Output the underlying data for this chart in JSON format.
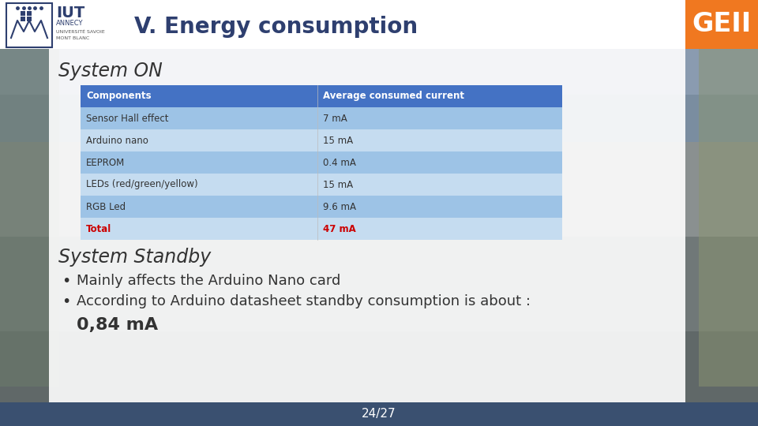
{
  "title": "V. Energy consumption",
  "geii_label": "GEII",
  "geii_bg": "#F07820",
  "geii_color": "#FFFFFF",
  "slide_bg": "#8A9BB0",
  "bottom_bar_color": "#3A5070",
  "bottom_text": "24/27",
  "system_on_title": "System ON",
  "system_standby_title": "System Standby",
  "table_header_bg": "#4472C4",
  "table_header_color": "#FFFFFF",
  "table_row_bg_odd": "#9DC3E6",
  "table_row_bg_even": "#C5DCF0",
  "table_total_bg": "#C5DCF0",
  "table_col1_header": "Components",
  "table_col2_header": "Average consumed current",
  "table_rows": [
    [
      "Sensor Hall effect",
      "7 mA"
    ],
    [
      "Arduino nano",
      "15 mA"
    ],
    [
      "EEPROM",
      "0.4 mA"
    ],
    [
      "LEDs (red/green/yellow)",
      "15 mA"
    ],
    [
      "RGB Led",
      "9.6 mA"
    ],
    [
      "Total",
      "47 mA"
    ]
  ],
  "total_row_color": "#CC0000",
  "bullet_points": [
    "Mainly affects the Arduino Nano card",
    "According to Arduino datasheet standby consumption is about :",
    "0,84 mA"
  ],
  "title_color": "#2E3F6F",
  "section_title_color": "#333333",
  "iut_title_color": "#2E3F6F",
  "content_bg": "#FFFFFF",
  "content_alpha": 0.9,
  "header_bg": "#FFFFFF"
}
